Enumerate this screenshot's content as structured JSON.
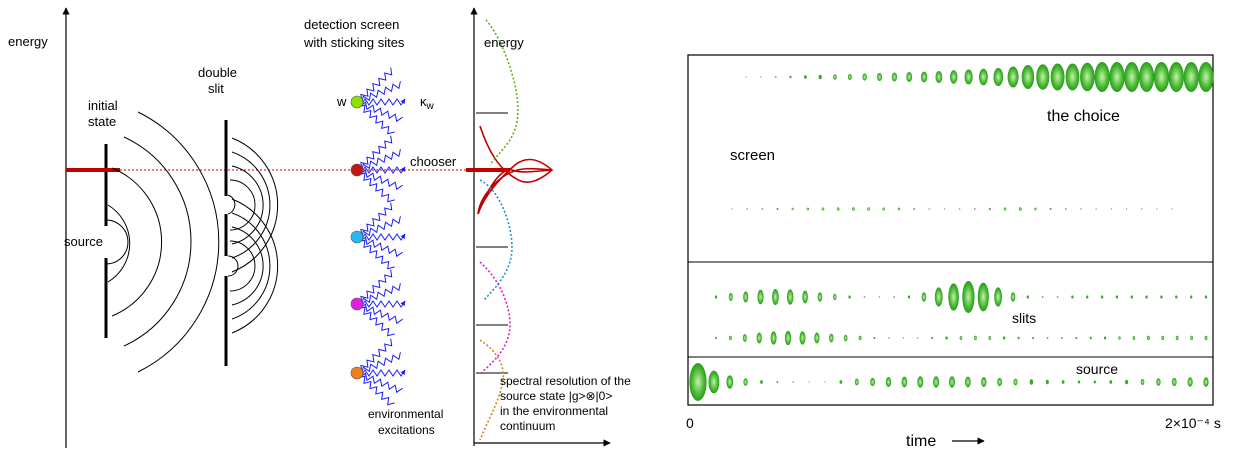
{
  "left_diagram": {
    "labels": {
      "energy_left": "energy",
      "energy_right": "energy",
      "initial_state_line1": "initial",
      "initial_state_line2": "state",
      "double_slit_line1": "double",
      "double_slit_line2": "slit",
      "source": "source",
      "detection_line1": "detection screen",
      "detection_line2": "with sticking sites",
      "w": "w",
      "kappa_w": "κw",
      "chooser": "chooser",
      "environmental_line1": "environmental",
      "environmental_line2": "excitations",
      "spectral_line1": "spectral resolution of the",
      "spectral_line2": "source state |g>⊗|0>",
      "spectral_line3": "in the environmental",
      "spectral_line4": "continuum"
    },
    "sites": [
      {
        "id": "w",
        "color": "#8ee000"
      },
      {
        "id": "chooser",
        "color": "#c01818"
      },
      {
        "id": "cyan",
        "color": "#28b8f0"
      },
      {
        "id": "magenta",
        "color": "#e020e0"
      },
      {
        "id": "orange",
        "color": "#f08018"
      }
    ],
    "colors": {
      "spring": "#1a1aff",
      "red": "#c00000",
      "green_dotted": "#60b020",
      "cyan_dotted": "#2090d0",
      "magenta_dotted": "#e020c0",
      "orange_dotted": "#e08010"
    }
  },
  "right_diagram": {
    "labels": {
      "the_choice": "the choice",
      "screen": "screen",
      "slits": "slits",
      "source": "source",
      "time": "time",
      "x_start": "0",
      "x_end": "2×10⁻⁴ s"
    },
    "blob_color": "#3aaa2a",
    "rows": [
      {
        "id": "top",
        "sizes": [
          0,
          0,
          0.05,
          0.08,
          0.12,
          0.15,
          0.18,
          0.2,
          0.24,
          0.27,
          0.3,
          0.33,
          0.36,
          0.4,
          0.45,
          0.5,
          0.55,
          0.6,
          0.7,
          0.8,
          0.85,
          0.9,
          0.9,
          0.95,
          1.0,
          1.0,
          1.0,
          1.0,
          1.0,
          1.0,
          1.0,
          1.0
        ]
      },
      {
        "id": "mid",
        "sizes": [
          0,
          0.05,
          0.1,
          0.14,
          0.17,
          0.2,
          0.22,
          0.24,
          0.25,
          0.24,
          0.22,
          0.2,
          0.12,
          0.05,
          0,
          0.05,
          0.1,
          0.18,
          0.22,
          0.25,
          0.2,
          0.15,
          0.1,
          0.05,
          0.02,
          0.02,
          0.02,
          0.02,
          0,
          0
        ]
      },
      {
        "id": "slits1",
        "sizes": [
          0.1,
          0.25,
          0.35,
          0.45,
          0.5,
          0.48,
          0.4,
          0.3,
          0.2,
          0.1,
          0.05,
          0.02,
          0.05,
          0.1,
          0.3,
          0.6,
          0.85,
          1.0,
          0.9,
          0.6,
          0.3,
          0.1,
          0.05,
          0.05,
          0.1,
          0.1,
          0.1,
          0.1,
          0.1,
          0.1,
          0.1,
          0.1,
          0.1,
          0.1
        ]
      },
      {
        "id": "slits2",
        "sizes": [
          0.1,
          0.2,
          0.35,
          0.5,
          0.6,
          0.65,
          0.6,
          0.5,
          0.4,
          0.3,
          0.2,
          0.1,
          0.05,
          0.02,
          0.05,
          0.1,
          0.15,
          0.18,
          0.2,
          0.18,
          0.15,
          0.12,
          0.1,
          0.08,
          0.08,
          0.1,
          0.12,
          0.14,
          0.16,
          0.18,
          0.2,
          0.2,
          0.2,
          0.2,
          0.2
        ]
      },
      {
        "id": "source",
        "sizes": [
          1.0,
          0.6,
          0.35,
          0.2,
          0.1,
          0.05,
          0.03,
          0,
          0,
          0.1,
          0.18,
          0.22,
          0.26,
          0.28,
          0.3,
          0.3,
          0.3,
          0.28,
          0.26,
          0.22,
          0.18,
          0.15,
          0.12,
          0.1,
          0.08,
          0.08,
          0.1,
          0.12,
          0.16,
          0.2,
          0.22,
          0.25,
          0.25
        ]
      }
    ]
  }
}
